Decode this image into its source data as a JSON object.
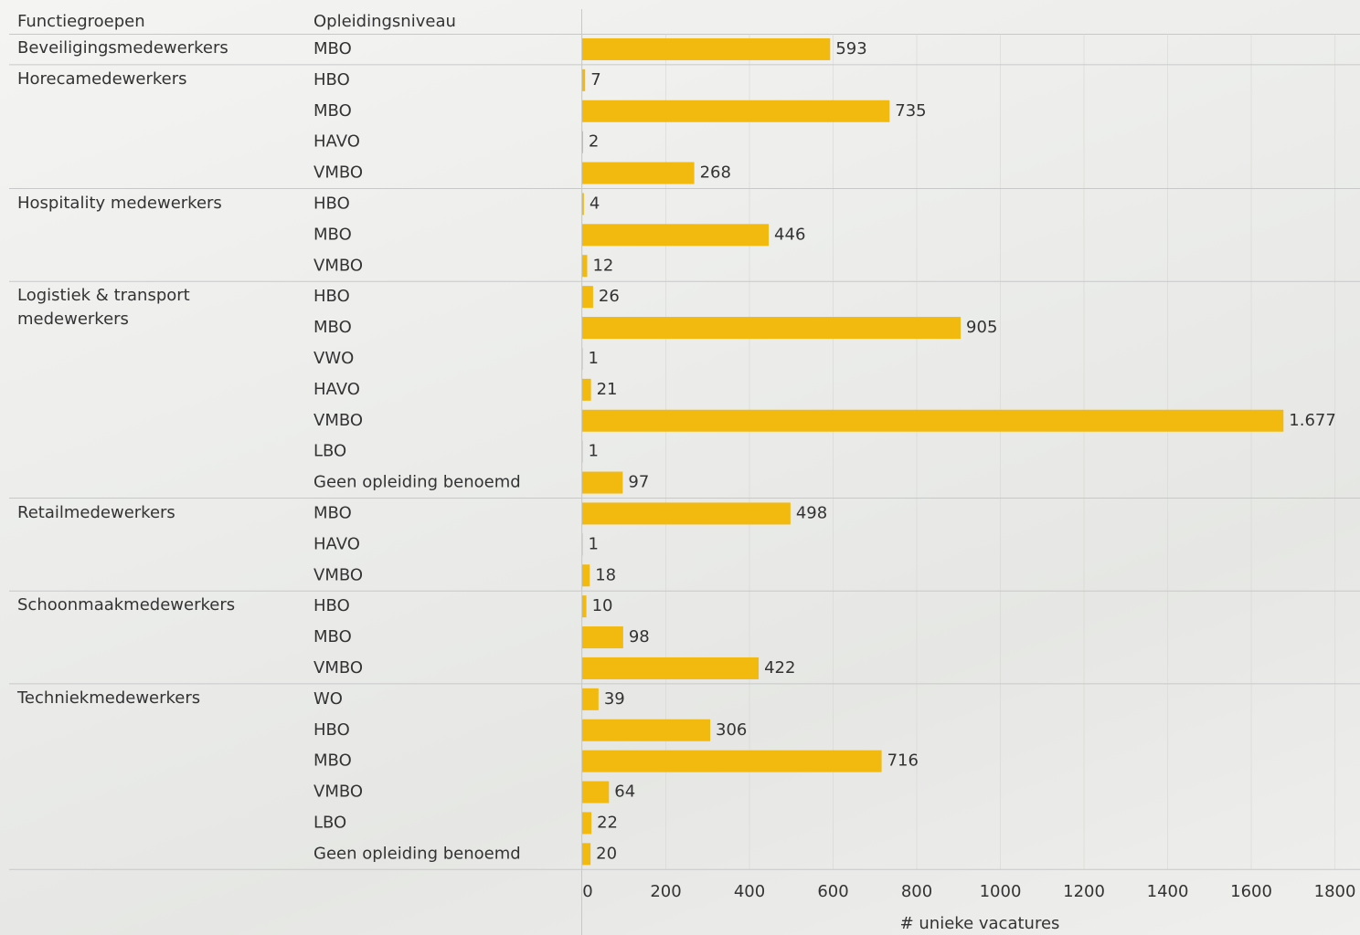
{
  "chart_data": {
    "type": "bar",
    "headers": [
      "Functiegroepen",
      "Opleidingsniveau"
    ],
    "x_label": "# unieke vacatures",
    "color": "#f2b90e",
    "xlim": [
      0,
      1860
    ],
    "xticks": [
      0,
      200,
      400,
      600,
      800,
      1000,
      1200,
      1400,
      1600,
      1800
    ],
    "grid": true,
    "groups": [
      {
        "name": "Beveiligingsmedewerkers",
        "levels": [
          "MBO"
        ],
        "values": [
          593
        ]
      },
      {
        "name": "Horecamedewerkers",
        "levels": [
          "HBO",
          "MBO",
          "HAVO",
          "VMBO"
        ],
        "values": [
          7,
          735,
          2,
          268
        ]
      },
      {
        "name": "Hospitality medewerkers",
        "levels": [
          "HBO",
          "MBO",
          "VMBO"
        ],
        "values": [
          4,
          446,
          12
        ]
      },
      {
        "name": "Logistiek & transport medewerkers",
        "levels": [
          "HBO",
          "MBO",
          "VWO",
          "HAVO",
          "VMBO",
          "LBO",
          "Geen opleiding benoemd"
        ],
        "values": [
          26,
          905,
          1,
          21,
          1677,
          1,
          97
        ],
        "value_labels": [
          "26",
          "905",
          "1",
          "21",
          "1.677",
          "1",
          "97"
        ]
      },
      {
        "name": "Retailmedewerkers",
        "levels": [
          "MBO",
          "HAVO",
          "VMBO"
        ],
        "values": [
          498,
          1,
          18
        ]
      },
      {
        "name": "Schoonmaakmedewerkers",
        "levels": [
          "HBO",
          "MBO",
          "VMBO"
        ],
        "values": [
          10,
          98,
          422
        ]
      },
      {
        "name": "Techniekmedewerkers",
        "levels": [
          "WO",
          "HBO",
          "MBO",
          "VMBO",
          "LBO",
          "Geen opleiding benoemd"
        ],
        "values": [
          39,
          306,
          716,
          64,
          22,
          20
        ]
      }
    ]
  }
}
